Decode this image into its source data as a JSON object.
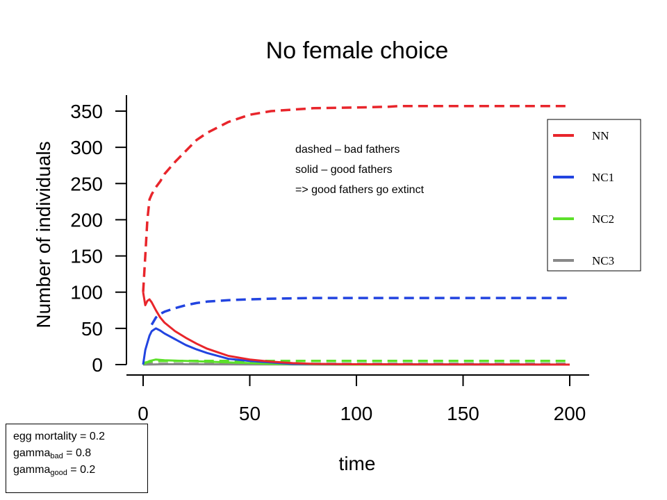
{
  "chart_data": {
    "type": "line",
    "title": "No female choice",
    "xlabel": "time",
    "ylabel": "Number of individuals",
    "xlim": [
      0,
      200
    ],
    "ylim": [
      0,
      350
    ],
    "xticks": [
      0,
      50,
      100,
      150,
      200
    ],
    "yticks": [
      0,
      50,
      100,
      150,
      200,
      250,
      300,
      350
    ],
    "grid": false,
    "legend_position": "top-right",
    "legend": [
      {
        "label": "NN",
        "color": "#e8252b"
      },
      {
        "label": "NC1",
        "color": "#2244e0"
      },
      {
        "label": "NC2",
        "color": "#5ce02a"
      },
      {
        "label": "NC3",
        "color": "#888888"
      }
    ],
    "series": [
      {
        "name": "NN",
        "style": "dashed",
        "color": "#e8252b",
        "x": [
          0,
          1,
          2,
          3,
          4,
          6,
          8,
          10,
          15,
          20,
          25,
          30,
          40,
          50,
          60,
          70,
          80,
          100,
          115,
          120,
          150,
          200
        ],
        "y": [
          100,
          150,
          200,
          228,
          235,
          245,
          253,
          263,
          280,
          295,
          310,
          320,
          335,
          345,
          350,
          352,
          354,
          355,
          356,
          357,
          357,
          357
        ]
      },
      {
        "name": "NN",
        "style": "solid",
        "color": "#e8252b",
        "x": [
          0,
          1,
          2,
          3,
          4,
          6,
          8,
          10,
          15,
          20,
          25,
          30,
          40,
          50,
          60,
          70,
          80,
          100,
          150,
          200
        ],
        "y": [
          100,
          82,
          88,
          90,
          86,
          75,
          65,
          58,
          46,
          37,
          29,
          22,
          12,
          7,
          4,
          2,
          1,
          0.5,
          0.2,
          0
        ]
      },
      {
        "name": "NC1",
        "style": "dashed",
        "color": "#2244e0",
        "x": [
          4,
          6,
          8,
          10,
          15,
          20,
          25,
          30,
          40,
          50,
          60,
          80,
          100,
          120,
          150,
          200
        ],
        "y": [
          55,
          65,
          70,
          73,
          78,
          82,
          85,
          87,
          89,
          90,
          91,
          92,
          92,
          92,
          92,
          92
        ]
      },
      {
        "name": "NC1",
        "style": "solid",
        "color": "#2244e0",
        "x": [
          0,
          1,
          2,
          3,
          4,
          5,
          6,
          8,
          10,
          15,
          20,
          25,
          30,
          40,
          50,
          60,
          70,
          100,
          150,
          200
        ],
        "y": [
          0,
          20,
          30,
          40,
          46,
          48,
          50,
          47,
          43,
          35,
          27,
          21,
          16,
          8,
          5,
          3,
          1,
          0.5,
          0.2,
          0
        ]
      },
      {
        "name": "NC2",
        "style": "dashed",
        "color": "#5ce02a",
        "x": [
          0,
          3,
          6,
          10,
          20,
          40,
          60,
          100,
          150,
          200
        ],
        "y": [
          2,
          4,
          5,
          5,
          5,
          5,
          5,
          5,
          5,
          5
        ]
      },
      {
        "name": "NC2",
        "style": "solid",
        "color": "#5ce02a",
        "x": [
          0,
          3,
          6,
          10,
          20,
          30,
          40,
          50,
          60,
          100,
          200
        ],
        "y": [
          0,
          5,
          7,
          6,
          5,
          4,
          3,
          2,
          1,
          0,
          0
        ]
      },
      {
        "name": "NC3",
        "style": "dashed",
        "color": "#888888",
        "x": [
          0,
          10,
          50,
          100,
          200
        ],
        "y": [
          1,
          1,
          1,
          1,
          1
        ]
      },
      {
        "name": "NC3",
        "style": "solid",
        "color": "#888888",
        "x": [
          0,
          10,
          50,
          100,
          200
        ],
        "y": [
          0,
          0.5,
          0.3,
          0,
          0
        ]
      }
    ],
    "annotations": [
      "dashed – bad fathers",
      "solid – good fathers",
      "=> good fathers go extinct"
    ]
  },
  "params": {
    "egg_mortality": "egg mortality = 0.2",
    "gamma_bad_prefix": "gamma",
    "gamma_bad_sub": "bad",
    "gamma_bad_value": " = 0.8",
    "gamma_good_prefix": "gamma",
    "gamma_good_sub": "good",
    "gamma_good_value": " = 0.2"
  }
}
